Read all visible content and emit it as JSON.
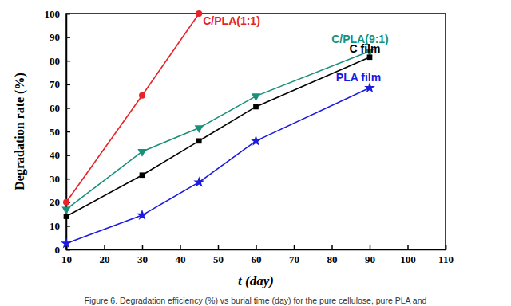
{
  "chart_data": {
    "type": "line",
    "x_label": "t (day)",
    "y_label": "Degradation rate  (%)",
    "caption": "Figure 6. Degradation efficiency (%) vs burial time (day) for the pure cellulose, pure PLA and",
    "x": [
      10,
      30,
      45,
      60,
      90
    ],
    "series": [
      {
        "name": "C/PLA(1:1)",
        "color": "#e8232a",
        "marker": "circle",
        "values": [
          20,
          65.3,
          100,
          null,
          null
        ]
      },
      {
        "name": "C/PLA(9:1)",
        "color": "#17917a",
        "marker": "triangle-down",
        "values": [
          17,
          41.5,
          51.5,
          65,
          84
        ]
      },
      {
        "name": "C film",
        "color": "#000000",
        "marker": "square",
        "values": [
          14,
          31.5,
          46,
          60.5,
          81.5
        ]
      },
      {
        "name": "PLA film",
        "color": "#1a1ae0",
        "marker": "star",
        "values": [
          2.5,
          14.5,
          28.5,
          46,
          68.5
        ]
      }
    ],
    "xlim": [
      10,
      110
    ],
    "xticks": [
      10,
      20,
      30,
      40,
      50,
      60,
      70,
      80,
      90,
      100,
      110
    ],
    "ylim": [
      0,
      100
    ],
    "yticks": [
      0,
      10,
      20,
      30,
      40,
      50,
      60,
      70,
      80,
      90,
      100
    ],
    "grid": false
  }
}
